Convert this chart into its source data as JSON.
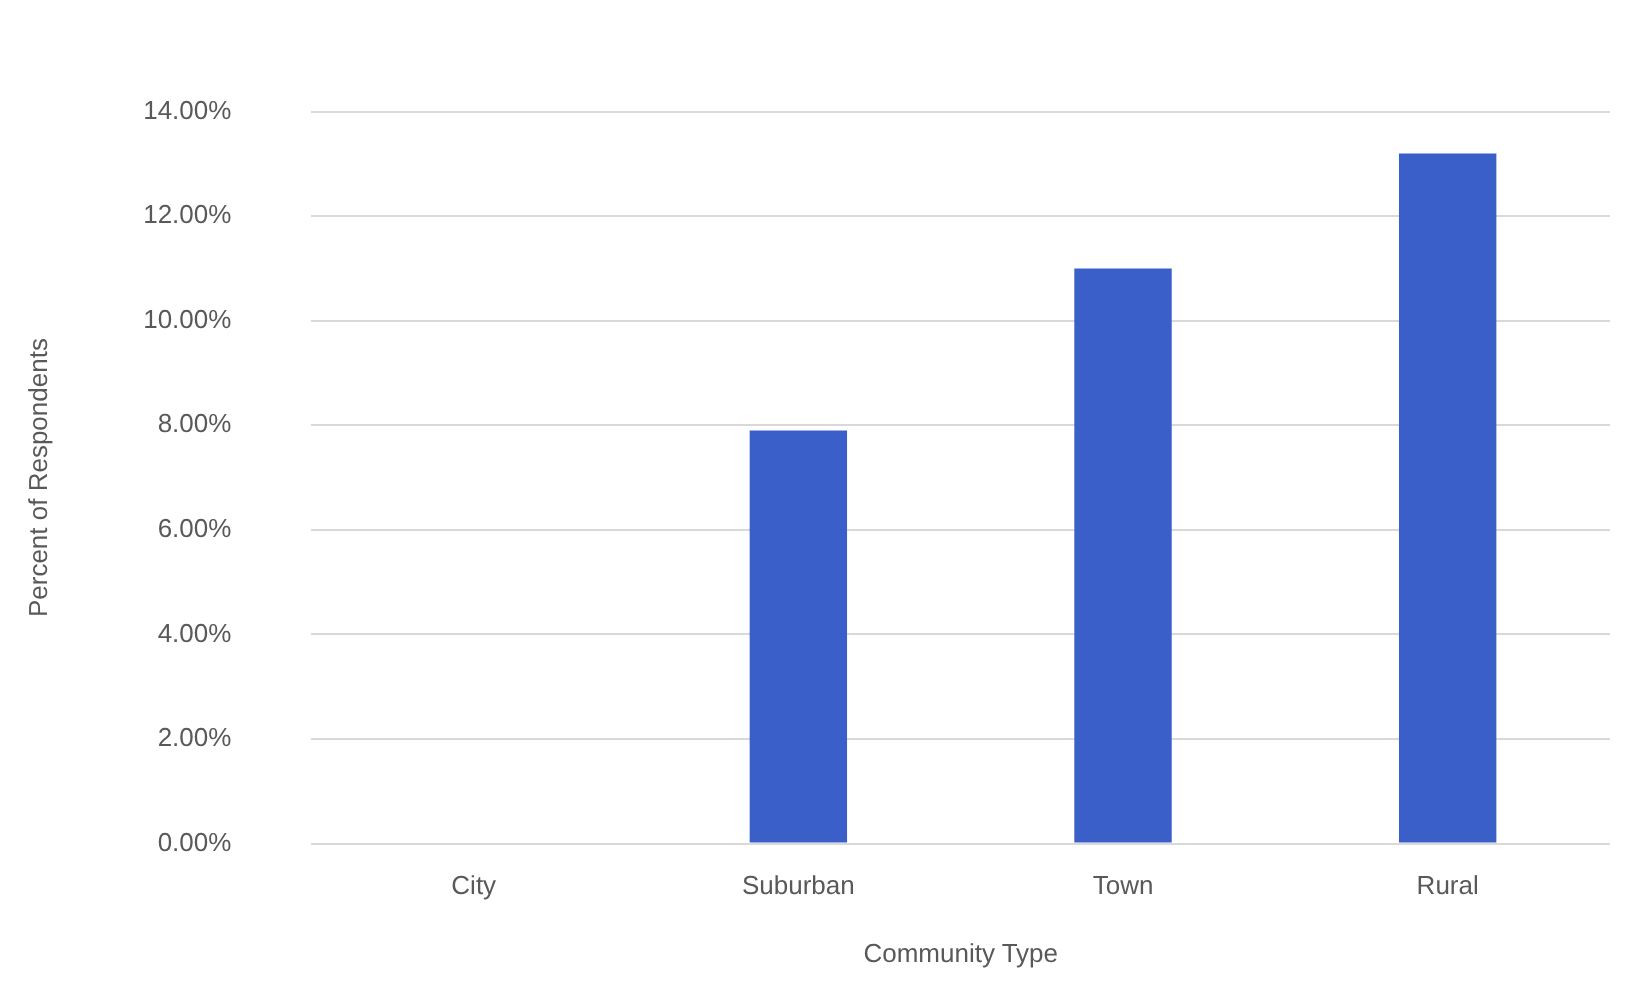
{
  "chart_data": {
    "type": "bar",
    "xlabel": "Community Type",
    "ylabel": "Percent of Respondents",
    "categories": [
      "City",
      "Suburban",
      "Town",
      "Rural"
    ],
    "values": [
      0,
      7.9,
      11.0,
      13.2
    ],
    "color": "#3a5fc8",
    "ylim": [
      0,
      14
    ],
    "yticks": [
      {
        "value": 0,
        "label": "0.00%"
      },
      {
        "value": 2,
        "label": "2.00%"
      },
      {
        "value": 4,
        "label": "4.00%"
      },
      {
        "value": 6,
        "label": "6.00%"
      },
      {
        "value": 8,
        "label": "8.00%"
      },
      {
        "value": 10,
        "label": "10.00%"
      },
      {
        "value": 12,
        "label": "12.00%"
      },
      {
        "value": 14,
        "label": "14.00%"
      }
    ],
    "grid": "y",
    "legend": false
  }
}
